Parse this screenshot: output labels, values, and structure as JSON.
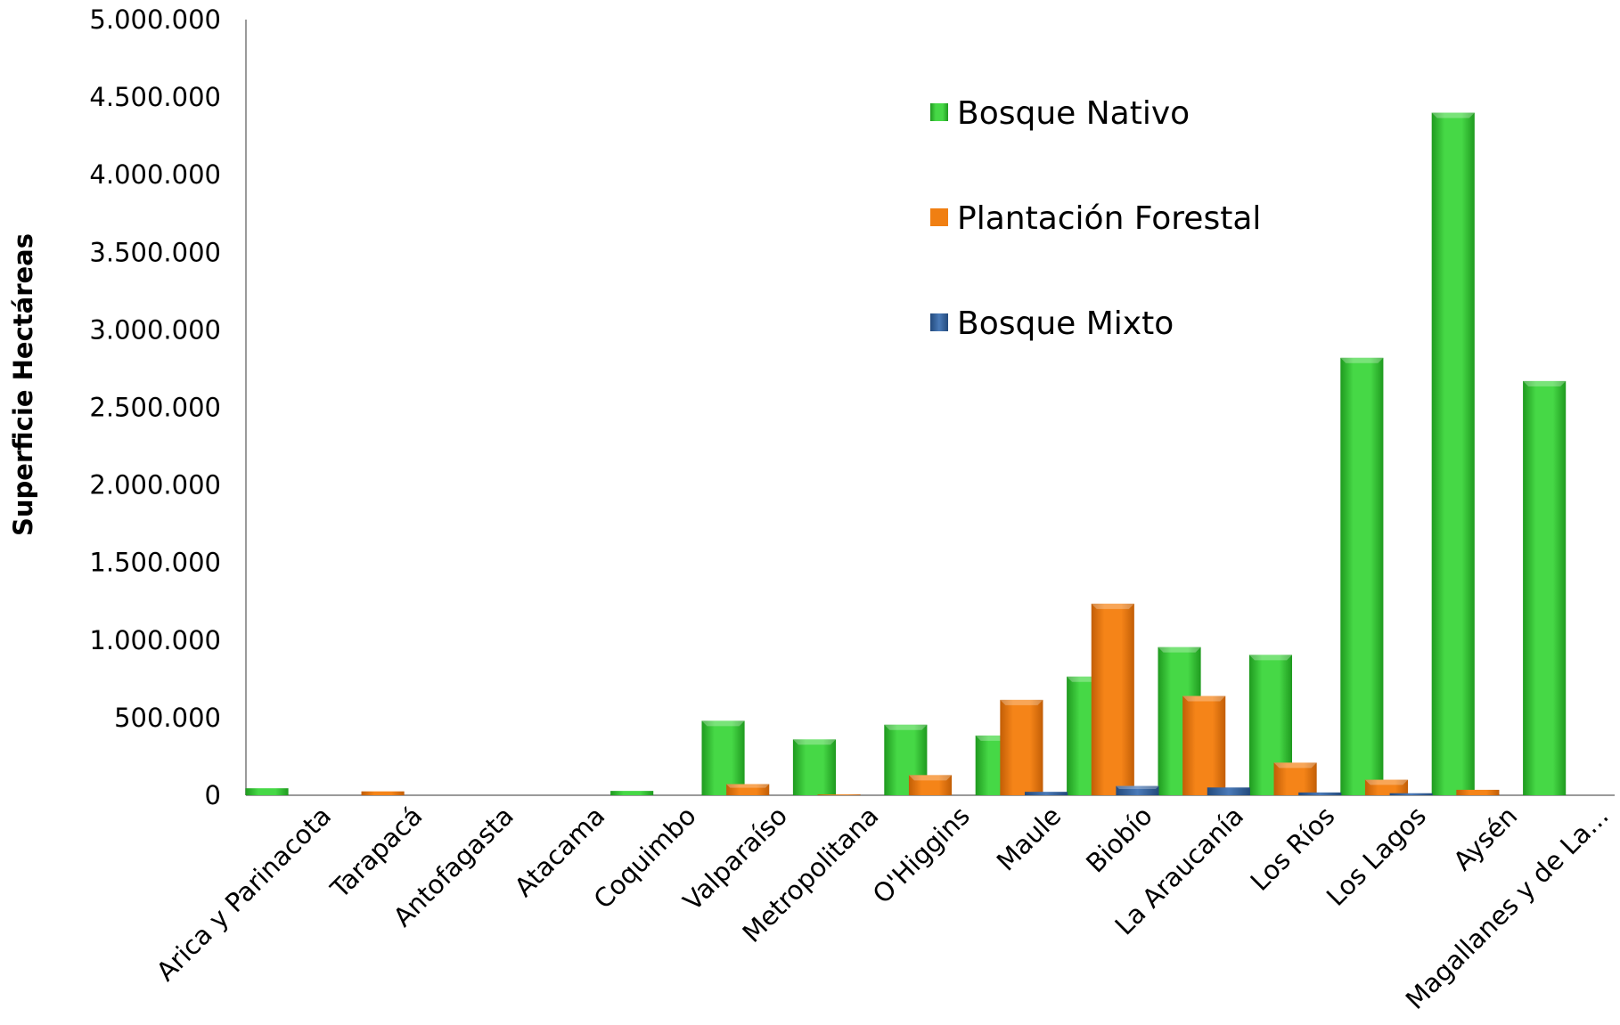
{
  "chart_data": {
    "type": "bar",
    "title": "",
    "xlabel": "",
    "ylabel": "Superficie Hectáreas",
    "ylim": [
      0,
      5000000
    ],
    "yticks": [
      0,
      500000,
      1000000,
      1500000,
      2000000,
      2500000,
      3000000,
      3500000,
      4000000,
      4500000,
      5000000
    ],
    "ytick_labels": [
      "0",
      "500.000",
      "1.000.000",
      "1.500.000",
      "2.000.000",
      "2.500.000",
      "3.000.000",
      "3.500.000",
      "4.000.000",
      "4.500.000",
      "5.000.000"
    ],
    "categories": [
      "Arica y Parinacota",
      "Tarapacá",
      "Antofagasta",
      "Atacama",
      "Coquimbo",
      "Valparaíso",
      "Metropolitana",
      "O'Higgins",
      "Maule",
      "Biobío",
      "La Araucanía",
      "Los Ríos",
      "Los Lagos",
      "Aysén",
      "Magallanes y de La..."
    ],
    "series": [
      {
        "name": "Bosque Nativo",
        "color": "#33cc33",
        "values": [
          45000,
          0,
          0,
          0,
          28000,
          480000,
          360000,
          455000,
          385000,
          765000,
          955000,
          905000,
          2820000,
          4400000,
          2670000
        ]
      },
      {
        "name": "Plantación Forestal",
        "color": "#f07f12",
        "values": [
          0,
          25000,
          0,
          0,
          0,
          72000,
          5000,
          130000,
          615000,
          1235000,
          640000,
          210000,
          100000,
          35000,
          0
        ]
      },
      {
        "name": "Bosque Mixto",
        "color": "#3a6aa6",
        "values": [
          0,
          0,
          0,
          0,
          0,
          0,
          0,
          0,
          22000,
          60000,
          50000,
          18000,
          13000,
          0,
          0
        ]
      }
    ],
    "legend_position": "top-right",
    "grid": false
  }
}
